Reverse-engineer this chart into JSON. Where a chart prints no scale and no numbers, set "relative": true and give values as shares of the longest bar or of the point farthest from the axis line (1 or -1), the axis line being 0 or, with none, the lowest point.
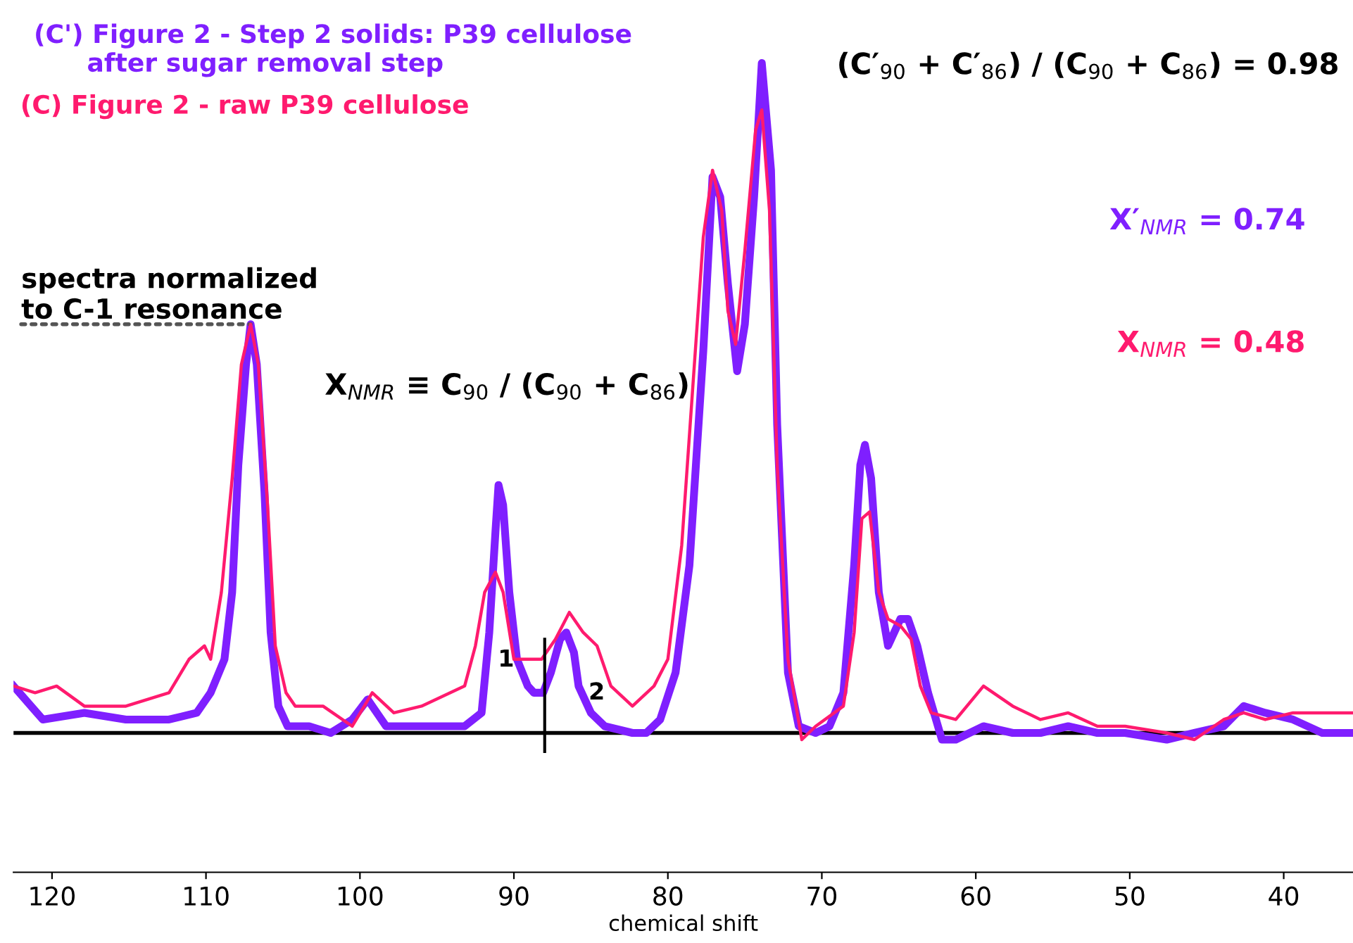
{
  "chart_data": {
    "type": "line",
    "relative": true,
    "xlabel": "chemical shift",
    "xlim": [
      122.5,
      35.5
    ],
    "xticks": [
      120,
      110,
      100,
      90,
      80,
      70,
      60,
      50,
      40
    ],
    "grid": false,
    "legend": false,
    "series": [
      {
        "name": "(C') Figure 2 - Step 2 solids: P39 cellulose\n      after sugar removal step",
        "color": "#7f1fff",
        "x": [
          122.5,
          120.6,
          117.9,
          115.2,
          112.4,
          110.6,
          109.7,
          108.8,
          108.3,
          107.9,
          107.4,
          107.1,
          106.7,
          106.2,
          105.8,
          105.3,
          104.7,
          103.3,
          101.9,
          100.5,
          99.5,
          98.3,
          96.0,
          93.2,
          92.1,
          91.6,
          91.2,
          91.0,
          90.7,
          90.3,
          89.8,
          89.1,
          88.7,
          88.1,
          87.6,
          87.0,
          86.6,
          86.1,
          85.8,
          85.0,
          84.1,
          82.3,
          81.4,
          80.5,
          79.5,
          78.6,
          77.7,
          77.1,
          76.6,
          76.1,
          75.5,
          75.0,
          74.4,
          73.9,
          73.3,
          72.9,
          72.2,
          71.5,
          70.4,
          69.5,
          68.6,
          67.9,
          67.5,
          67.2,
          66.8,
          66.3,
          65.7,
          64.9,
          64.4,
          63.8,
          63.1,
          62.2,
          61.3,
          59.5,
          57.6,
          55.8,
          54.0,
          52.1,
          50.3,
          47.6,
          45.8,
          43.9,
          42.6,
          41.2,
          39.4,
          37.5,
          35.6
        ],
        "values": [
          0.07,
          0.02,
          0.03,
          0.02,
          0.02,
          0.03,
          0.06,
          0.11,
          0.21,
          0.4,
          0.55,
          0.61,
          0.55,
          0.36,
          0.15,
          0.04,
          0.01,
          0.01,
          0.0,
          0.02,
          0.05,
          0.01,
          0.01,
          0.01,
          0.03,
          0.15,
          0.3,
          0.37,
          0.34,
          0.21,
          0.11,
          0.07,
          0.06,
          0.06,
          0.09,
          0.14,
          0.15,
          0.12,
          0.07,
          0.03,
          0.01,
          0.0,
          0.0,
          0.02,
          0.09,
          0.25,
          0.57,
          0.83,
          0.8,
          0.67,
          0.54,
          0.61,
          0.8,
          1.0,
          0.84,
          0.46,
          0.09,
          0.01,
          0.0,
          0.01,
          0.06,
          0.25,
          0.4,
          0.43,
          0.38,
          0.21,
          0.13,
          0.17,
          0.17,
          0.13,
          0.06,
          -0.01,
          -0.01,
          0.01,
          0.0,
          0.0,
          0.01,
          0.0,
          0.0,
          -0.01,
          0.0,
          0.01,
          0.04,
          0.03,
          0.02,
          0.0,
          0.0
        ]
      },
      {
        "name": "(C) Figure 2 - raw P39 cellulose",
        "color": "#ff1a6e",
        "x": [
          122.5,
          121.1,
          119.7,
          117.9,
          115.2,
          112.4,
          111.1,
          110.1,
          109.7,
          109.0,
          108.3,
          107.7,
          107.1,
          106.6,
          106.0,
          105.5,
          104.8,
          104.2,
          102.4,
          100.5,
          99.2,
          97.8,
          96.0,
          93.2,
          92.5,
          91.9,
          91.2,
          90.7,
          90.0,
          89.1,
          88.2,
          87.3,
          86.4,
          85.5,
          84.6,
          83.7,
          82.3,
          80.9,
          80.0,
          79.1,
          78.4,
          77.7,
          77.1,
          76.5,
          76.1,
          75.6,
          75.0,
          74.3,
          73.9,
          73.4,
          72.9,
          72.2,
          71.3,
          70.4,
          68.6,
          67.9,
          67.4,
          66.9,
          66.3,
          65.7,
          64.9,
          64.2,
          63.6,
          62.9,
          61.3,
          59.5,
          57.6,
          55.8,
          54.0,
          52.1,
          50.3,
          47.6,
          45.8,
          43.9,
          42.6,
          41.2,
          39.4,
          37.5,
          35.6
        ],
        "values": [
          0.07,
          0.06,
          0.07,
          0.04,
          0.04,
          0.06,
          0.11,
          0.13,
          0.11,
          0.21,
          0.38,
          0.55,
          0.61,
          0.55,
          0.34,
          0.13,
          0.06,
          0.04,
          0.04,
          0.01,
          0.06,
          0.03,
          0.04,
          0.07,
          0.13,
          0.21,
          0.24,
          0.21,
          0.11,
          0.11,
          0.11,
          0.14,
          0.18,
          0.15,
          0.13,
          0.07,
          0.04,
          0.07,
          0.11,
          0.28,
          0.51,
          0.74,
          0.84,
          0.78,
          0.63,
          0.58,
          0.72,
          0.9,
          0.93,
          0.78,
          0.4,
          0.11,
          -0.01,
          0.01,
          0.04,
          0.15,
          0.32,
          0.33,
          0.21,
          0.17,
          0.16,
          0.14,
          0.07,
          0.03,
          0.02,
          0.07,
          0.04,
          0.02,
          0.03,
          0.01,
          0.01,
          0.0,
          -0.01,
          0.02,
          0.03,
          0.02,
          0.03,
          0.03,
          0.03
        ]
      }
    ],
    "ref_lines": [
      {
        "axis": "x",
        "value": 88,
        "color": "#000000"
      }
    ],
    "annotations": [
      {
        "text": "spectra normalized\nto C-1 resonance",
        "x": 107.1,
        "y": 0.61
      },
      "X$_{NMR}$ ≡ C$_{90}$ / (C$_{90}$ + C$_{86}$)",
      "(C′$_{90}$ + C′$_{86}$) / (C$_{90}$ + C$_{86}$) = 0.98",
      "X′$_{NMR}$ = 0.74",
      "X$_{NMR}$ = 0.48",
      "1",
      "2"
    ]
  }
}
